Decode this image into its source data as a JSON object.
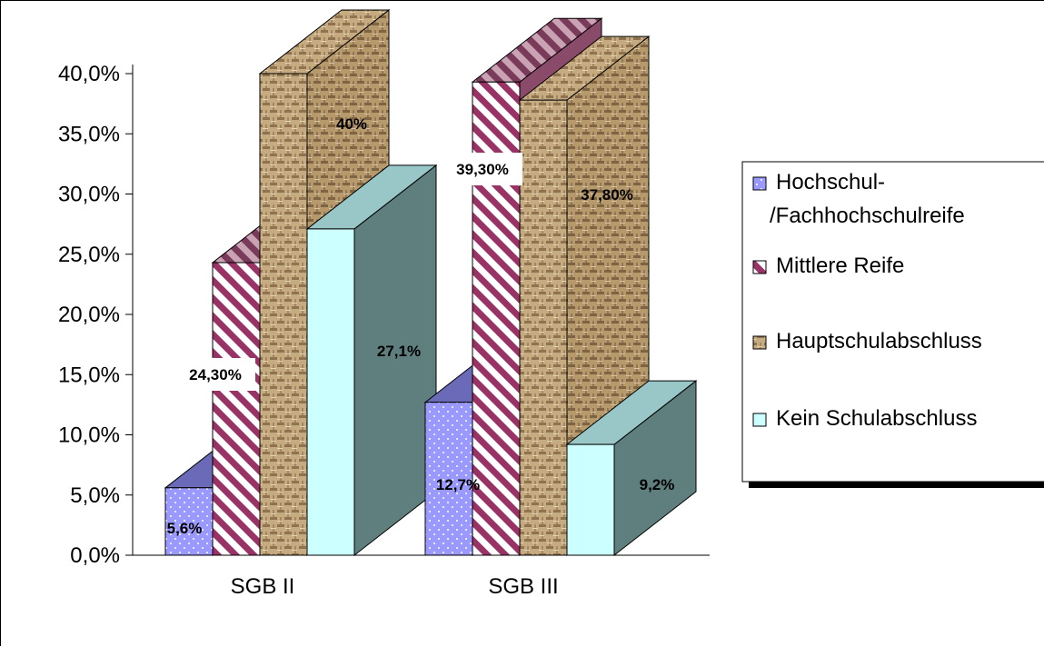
{
  "chart_data": {
    "type": "bar",
    "three_d": true,
    "categories": [
      "SGB II",
      "SGB III"
    ],
    "series": [
      {
        "name": "Hochschul-/Fachhochschulreife",
        "legend_lines": [
          "Hochschul-",
          "/Fachhochschulreife"
        ],
        "values": [
          5.6,
          12.7
        ],
        "labels": [
          "5,6%",
          "12,7%"
        ],
        "color": "#9999ff",
        "side_color": "#5f5fa8",
        "pattern": "dots"
      },
      {
        "name": "Mittlere Reife",
        "legend_lines": [
          "Mittlere Reife"
        ],
        "values": [
          24.3,
          39.3
        ],
        "labels": [
          "24,30%",
          "39,30%"
        ],
        "color": "#993366",
        "side_color": "#7a3a5a",
        "pattern": "stripes"
      },
      {
        "name": "Hauptschulabschluss",
        "legend_lines": [
          "Hauptschulabschluss"
        ],
        "values": [
          40.0,
          37.8
        ],
        "labels": [
          "40%",
          "37,80%"
        ],
        "color": "#c8a87a",
        "side_color": "#a98a5c",
        "pattern": "weave"
      },
      {
        "name": "Kein Schulabschluss",
        "legend_lines": [
          "Kein Schulabschluss"
        ],
        "values": [
          27.1,
          9.2
        ],
        "labels": [
          "27,1%",
          "9,2%"
        ],
        "color": "#ccffff",
        "side_color": "#5f7f7f",
        "pattern": "solid"
      }
    ],
    "yticks": [
      "0,0%",
      "5,0%",
      "10,0%",
      "15,0%",
      "20,0%",
      "25,0%",
      "30,0%",
      "35,0%",
      "40,0%"
    ],
    "ylim": [
      0,
      40
    ],
    "title": "",
    "xlabel": "",
    "ylabel": "",
    "legend_position": "right",
    "grid": false
  }
}
